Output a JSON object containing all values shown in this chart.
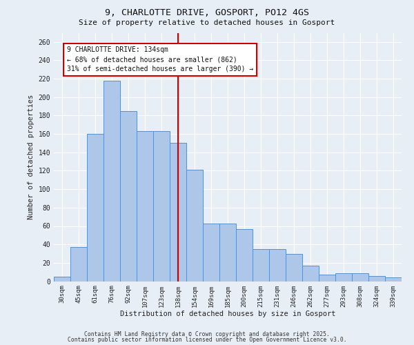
{
  "title1": "9, CHARLOTTE DRIVE, GOSPORT, PO12 4GS",
  "title2": "Size of property relative to detached houses in Gosport",
  "xlabel": "Distribution of detached houses by size in Gosport",
  "ylabel": "Number of detached properties",
  "categories": [
    "30sqm",
    "45sqm",
    "61sqm",
    "76sqm",
    "92sqm",
    "107sqm",
    "123sqm",
    "138sqm",
    "154sqm",
    "169sqm",
    "185sqm",
    "200sqm",
    "215sqm",
    "231sqm",
    "246sqm",
    "262sqm",
    "277sqm",
    "293sqm",
    "308sqm",
    "324sqm",
    "339sqm"
  ],
  "values": [
    5,
    37,
    160,
    218,
    185,
    163,
    163,
    150,
    121,
    63,
    63,
    57,
    35,
    35,
    30,
    17,
    7,
    9,
    9,
    6,
    4
  ],
  "bar_color": "#aec6e8",
  "bar_edge_color": "#5b8fc9",
  "marker_index": 7,
  "marker_color": "#cc0000",
  "annotation_title": "9 CHARLOTTE DRIVE: 134sqm",
  "annotation_line1": "← 68% of detached houses are smaller (862)",
  "annotation_line2": "31% of semi-detached houses are larger (390) →",
  "annotation_box_color": "white",
  "annotation_box_edge": "#cc0000",
  "background_color": "#e8eef6",
  "grid_color": "#c8d4e4",
  "footer1": "Contains HM Land Registry data © Crown copyright and database right 2025.",
  "footer2": "Contains public sector information licensed under the Open Government Licence v3.0.",
  "ylim": [
    0,
    270
  ],
  "yticks": [
    0,
    20,
    40,
    60,
    80,
    100,
    120,
    140,
    160,
    180,
    200,
    220,
    240,
    260
  ]
}
